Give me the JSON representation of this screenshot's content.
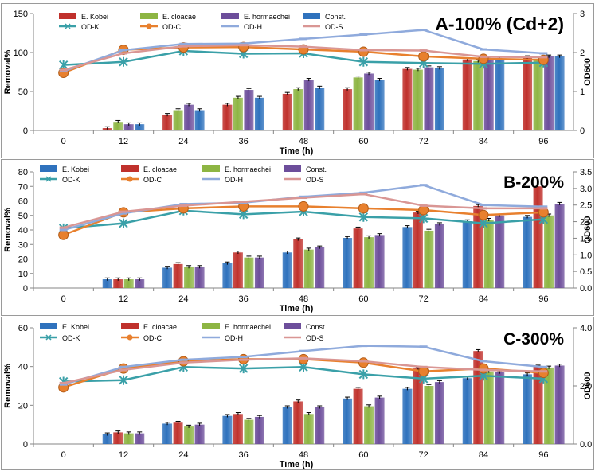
{
  "chart_data": [
    {
      "type": "bar",
      "title": "A-100% (Cd+2)",
      "xlabel": "Time (h)",
      "ylabel": "Removal%",
      "y2label": "OD600",
      "categories": [
        "0",
        "12",
        "24",
        "36",
        "48",
        "60",
        "72",
        "84",
        "96"
      ],
      "ylim": [
        0,
        150
      ],
      "yticks": [
        0,
        50,
        100,
        150
      ],
      "y2lim": [
        0,
        3
      ],
      "y2ticks": [
        0,
        1,
        2,
        3
      ],
      "y2tick_labels": [
        "0",
        "1",
        "2",
        "3"
      ],
      "legend_position": "top-left",
      "series": [
        {
          "name": "E. Kobei",
          "color": "#C0312C",
          "values": [
            0,
            3,
            20,
            33,
            47,
            53,
            79,
            91,
            94
          ]
        },
        {
          "name": "E. cloacae",
          "color": "#8DB543",
          "values": [
            0,
            11,
            26,
            42,
            53,
            68,
            78,
            89,
            92
          ]
        },
        {
          "name": "E. hormaechei",
          "color": "#6D4E9B",
          "values": [
            0,
            8,
            33,
            52,
            65,
            73,
            81,
            92,
            95
          ]
        },
        {
          "name": "Const.",
          "color": "#2F72BD",
          "values": [
            0,
            8,
            26,
            42,
            55,
            65,
            80,
            92,
            95
          ]
        }
      ],
      "lines": [
        {
          "name": "OD-K",
          "color": "#3AA0A8",
          "marker": "asterisk",
          "values": [
            1.68,
            1.76,
            2.04,
            1.97,
            1.98,
            1.76,
            1.73,
            1.71,
            1.74
          ]
        },
        {
          "name": "OD-C",
          "color": "#E8802E",
          "marker": "circle",
          "values": [
            1.48,
            2.07,
            2.13,
            2.14,
            2.08,
            2.02,
            1.9,
            1.84,
            1.81
          ]
        },
        {
          "name": "OD-H",
          "color": "#8FAADC",
          "marker": "dash",
          "values": [
            1.52,
            2.06,
            2.22,
            2.23,
            2.35,
            2.46,
            2.58,
            2.08,
            1.98
          ]
        },
        {
          "name": "OD-S",
          "color": "#D99694",
          "marker": "dash",
          "values": [
            1.55,
            1.98,
            2.16,
            2.19,
            2.15,
            2.06,
            2.05,
            1.89,
            1.88
          ]
        }
      ]
    },
    {
      "type": "bar",
      "title": "B-200%",
      "xlabel": "Time (h)",
      "ylabel": "Removal%",
      "y2label": "OD600",
      "categories": [
        "0",
        "12",
        "24",
        "36",
        "48",
        "60",
        "72",
        "84",
        "96"
      ],
      "ylim": [
        0,
        80
      ],
      "yticks": [
        0,
        10,
        20,
        30,
        40,
        50,
        60,
        70,
        80
      ],
      "y2lim": [
        0,
        3.5
      ],
      "y2ticks": [
        0,
        0.5,
        1,
        1.5,
        2,
        2.5,
        3,
        3.5
      ],
      "y2tick_labels": [
        "0.0",
        "0.5",
        "1.0",
        "1.5",
        "2.0",
        "2.5",
        "3.0",
        "3.5"
      ],
      "legend_position": "top-left",
      "series": [
        {
          "name": "E. Kobei",
          "color": "#2F72BD",
          "values": [
            0,
            6,
            14,
            17,
            24.5,
            34.5,
            42,
            46,
            49
          ]
        },
        {
          "name": "E. cloacae",
          "color": "#C0312C",
          "values": [
            0,
            6,
            16.5,
            24.5,
            33.5,
            41,
            52,
            56.5,
            70
          ]
        },
        {
          "name": "E. hormaechei",
          "color": "#8DB543",
          "values": [
            0,
            6,
            14.5,
            21,
            26.5,
            35,
            39.5,
            47,
            50
          ]
        },
        {
          "name": "Const.",
          "color": "#6D4E9B",
          "values": [
            0,
            6,
            14.5,
            21,
            28,
            36.5,
            44,
            50,
            58
          ]
        }
      ],
      "lines": [
        {
          "name": "OD-K",
          "color": "#3AA0A8",
          "marker": "asterisk",
          "values": [
            1.8,
            1.95,
            2.33,
            2.22,
            2.3,
            2.14,
            2.1,
            1.95,
            2.07
          ]
        },
        {
          "name": "OD-C",
          "color": "#E8802E",
          "marker": "circle",
          "values": [
            1.6,
            2.28,
            2.4,
            2.46,
            2.46,
            2.4,
            2.35,
            2.2,
            2.28
          ]
        },
        {
          "name": "OD-H",
          "color": "#8FAADC",
          "marker": "dash",
          "values": [
            1.75,
            2.25,
            2.53,
            2.57,
            2.75,
            2.87,
            3.1,
            2.5,
            2.45
          ]
        },
        {
          "name": "OD-S",
          "color": "#D99694",
          "marker": "dash",
          "values": [
            1.82,
            2.3,
            2.48,
            2.6,
            2.72,
            2.83,
            2.48,
            2.4,
            2.4
          ]
        }
      ]
    },
    {
      "type": "bar",
      "title": "C-300%",
      "xlabel": "Time (h)",
      "ylabel": "Removal%",
      "y2label": "OD600",
      "categories": [
        "0",
        "12",
        "24",
        "36",
        "48",
        "60",
        "72",
        "84",
        "96"
      ],
      "ylim": [
        0,
        60
      ],
      "yticks": [
        0,
        20,
        40,
        60
      ],
      "y2lim": [
        0,
        4
      ],
      "y2ticks": [
        0,
        2,
        4
      ],
      "y2tick_labels": [
        "0.0",
        "2.0",
        "4.0"
      ],
      "legend_position": "top-left",
      "series": [
        {
          "name": "E. Kobei",
          "color": "#2F72BD",
          "values": [
            0,
            5,
            10.5,
            14.5,
            19,
            23.5,
            28.5,
            34,
            36
          ]
        },
        {
          "name": "E. cloacae",
          "color": "#C0312C",
          "values": [
            0,
            6,
            11,
            15.5,
            22,
            28.5,
            39,
            48,
            40
          ]
        },
        {
          "name": "E. hormaechei",
          "color": "#8DB543",
          "values": [
            0,
            5.5,
            9,
            12.5,
            15.5,
            19.5,
            30,
            37.5,
            39.5
          ]
        },
        {
          "name": "Const.",
          "color": "#6D4E9B",
          "values": [
            0,
            5.5,
            10,
            14,
            19,
            24,
            32,
            37,
            40.5
          ]
        }
      ],
      "lines": [
        {
          "name": "OD-K",
          "color": "#3AA0A8",
          "marker": "asterisk",
          "values": [
            2.15,
            2.2,
            2.65,
            2.6,
            2.65,
            2.4,
            2.25,
            2.35,
            2.25
          ]
        },
        {
          "name": "OD-C",
          "color": "#E8802E",
          "marker": "circle",
          "values": [
            1.95,
            2.6,
            2.85,
            2.92,
            2.92,
            2.8,
            2.5,
            2.6,
            2.45
          ]
        },
        {
          "name": "OD-H",
          "color": "#8FAADC",
          "marker": "dash",
          "values": [
            2.05,
            2.65,
            2.9,
            3.0,
            3.2,
            3.38,
            3.35,
            2.85,
            2.65
          ]
        },
        {
          "name": "OD-S",
          "color": "#D99694",
          "marker": "dash",
          "values": [
            2.1,
            2.55,
            2.8,
            2.9,
            2.95,
            2.85,
            2.65,
            2.55,
            2.5
          ]
        }
      ]
    }
  ]
}
